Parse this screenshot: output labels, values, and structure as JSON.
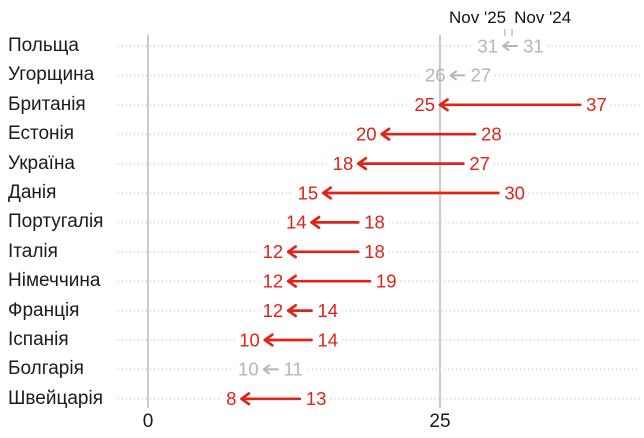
{
  "colors": {
    "changed": "#e02318",
    "unchanged": "#b5b5b5",
    "grid": "#dcdcdc",
    "axis_line": "#c4c4c4",
    "legend_tick": "#bdbdbd",
    "text": "#1a1a1a"
  },
  "chart_data": {
    "type": "arrow",
    "legend": [
      "Nov '25",
      "Nov '24"
    ],
    "legend_position": "top-right",
    "categories": [
      "Польща",
      "Угорщина",
      "Британія",
      "Естонія",
      "Україна",
      "Данія",
      "Португалія",
      "Італія",
      "Німеччина",
      "Франція",
      "Іспанія",
      "Болгарія",
      "Швейцарія"
    ],
    "series": [
      {
        "name": "Nov '25",
        "values": [
          31,
          26,
          25,
          20,
          18,
          15,
          14,
          12,
          12,
          12,
          10,
          10,
          8
        ]
      },
      {
        "name": "Nov '24",
        "values": [
          31,
          27,
          37,
          28,
          27,
          30,
          18,
          18,
          19,
          14,
          14,
          11,
          13
        ]
      }
    ],
    "muted_row_indices": [
      0,
      1,
      11
    ],
    "x_ticks": [
      0,
      25
    ],
    "xlim": [
      0,
      42
    ],
    "grid": "dotted-horizontal",
    "arrow_direction": "right-to-left"
  }
}
